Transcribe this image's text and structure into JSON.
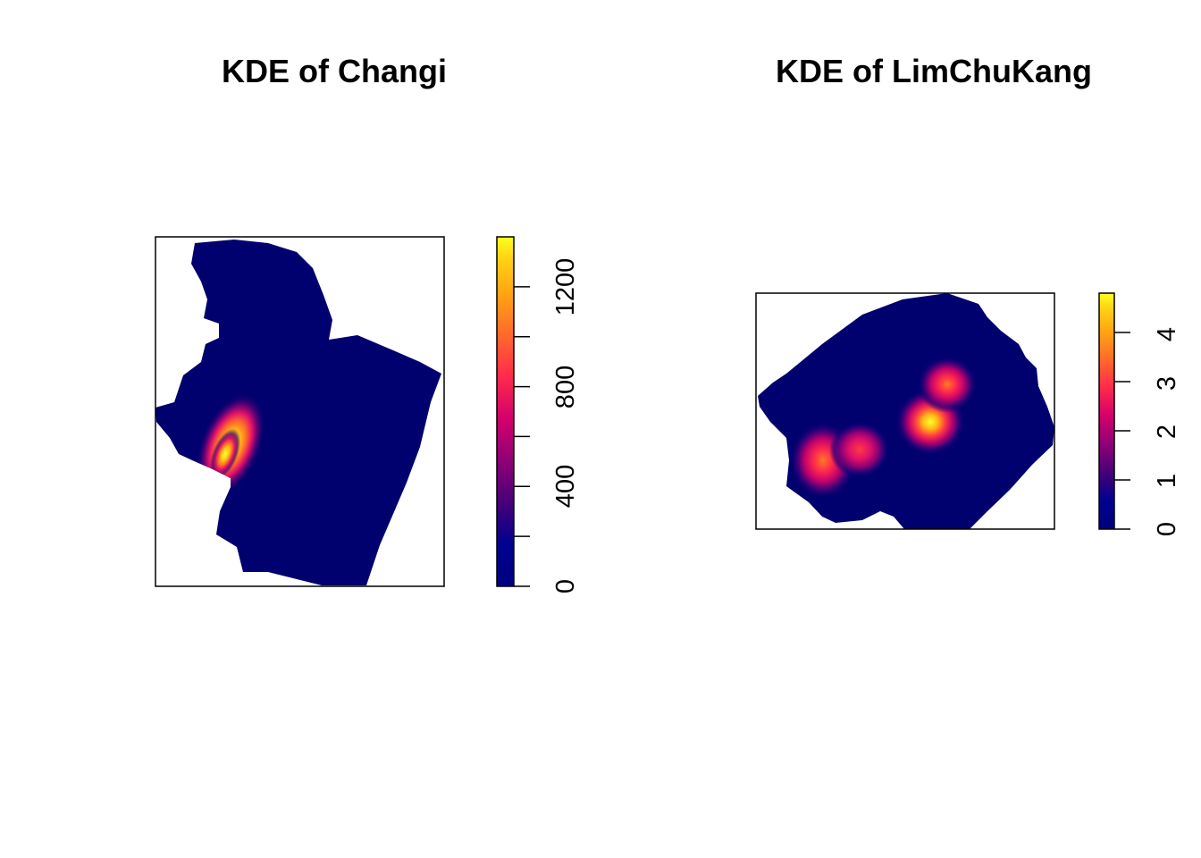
{
  "chart_data": [
    {
      "type": "heatmap",
      "title": "KDE of Changi",
      "xlabel": "",
      "ylabel": "",
      "colorbar": {
        "range": [
          0,
          1400
        ],
        "ticks": [
          0,
          200,
          400,
          600,
          800,
          1000,
          1200
        ],
        "tick_labels": [
          "0",
          "400",
          "800",
          "1200"
        ],
        "labeled_ticks": [
          0,
          400,
          800,
          1200
        ]
      },
      "palette": [
        "#00007f",
        "#13007a",
        "#5a0078",
        "#9a0074",
        "#d8006a",
        "#ff2a4c",
        "#ff6d2c",
        "#ffa414",
        "#ffd212",
        "#ffff20"
      ],
      "outside_color": "#ffffff",
      "background": "#00006e",
      "hotspots": [
        {
          "name": "west-ridge",
          "peak": 1400
        }
      ]
    },
    {
      "type": "heatmap",
      "title": "KDE of LimChuKang",
      "xlabel": "",
      "ylabel": "",
      "colorbar": {
        "range": [
          0,
          4.8
        ],
        "ticks": [
          0,
          1,
          2,
          3,
          4
        ],
        "tick_labels": [
          "0",
          "1",
          "2",
          "3",
          "4"
        ],
        "labeled_ticks": [
          0,
          1,
          2,
          3,
          4
        ]
      },
      "palette": [
        "#00007f",
        "#13007a",
        "#5a0078",
        "#9a0074",
        "#d8006a",
        "#ff2a4c",
        "#ff6d2c",
        "#ffa414",
        "#ffd212",
        "#ffff20"
      ],
      "outside_color": "#ffffff",
      "background": "#00006e",
      "hotspots": [
        {
          "name": "center",
          "peak": 4.8
        },
        {
          "name": "north-center",
          "peak": 3.2
        },
        {
          "name": "southwest",
          "peak": 3.6
        },
        {
          "name": "south-mid",
          "peak": 3.0
        }
      ]
    }
  ]
}
